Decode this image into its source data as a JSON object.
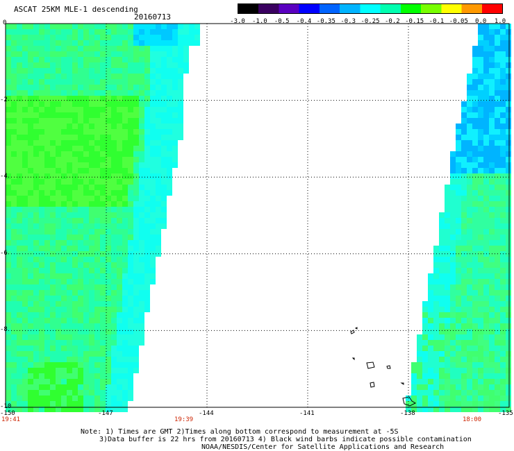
{
  "header": {
    "title": "ASCAT 25KM MLE-1 descending",
    "date": "20160713"
  },
  "colorbar": {
    "labels": [
      "-3.0",
      "-1.0",
      "-0.5",
      "-0.4",
      "-0.35",
      "-0.3",
      "-0.25",
      "-0.2",
      "-0.15",
      "-0.1",
      "-0.05",
      "0.0",
      "1.0"
    ],
    "colors": [
      "#000000",
      "#3a0060",
      "#5a00c0",
      "#0000ff",
      "#0064ff",
      "#00b4ff",
      "#00ffff",
      "#00ffb0",
      "#00ff00",
      "#78ff00",
      "#ffff00",
      "#ff9900",
      "#ff0000"
    ]
  },
  "map": {
    "lon_ticks": [
      "-150",
      "-147",
      "-144",
      "-141",
      "-138",
      "-135"
    ],
    "lat_ticks": [
      "0",
      "-2",
      "-4",
      "-6",
      "-8",
      "-10"
    ],
    "lon_range": [
      -150,
      -135
    ],
    "lat_range": [
      0,
      -10
    ],
    "left_swath_time_start": "19:41",
    "left_swath_time_end": "19:39",
    "right_swath_time": "18:00",
    "land_color": "#ffffff",
    "dominant_colors": [
      "#00ffb0",
      "#00ff50",
      "#00ffff",
      "#0064ff"
    ]
  },
  "notes": {
    "line1": "Note: 1) Times are GMT 2)Times along bottom correspond to measurement at -5S",
    "line2": "3)Data buffer is 22 hrs from 20160713 4) Black wind barbs indicate possible contamination",
    "line3": "NOAA/NESDIS/Center for Satellite Applications and Research"
  }
}
